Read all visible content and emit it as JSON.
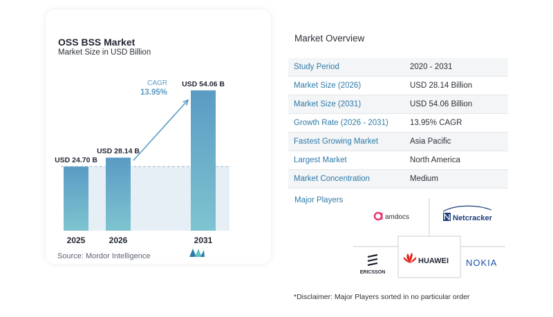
{
  "chart_data": {
    "type": "bar",
    "title": "OSS BSS Market",
    "subtitle": "Market Size in USD Billion",
    "categories": [
      "2025",
      "2026",
      "2031"
    ],
    "values": [
      24.7,
      28.14,
      54.06
    ],
    "value_labels": [
      "USD 24.70 B",
      "USD 28.14 B",
      "USD 54.06 B"
    ],
    "ylim": [
      0,
      58
    ],
    "cagr_label": "CAGR",
    "cagr_value": "13.95%",
    "colors": {
      "bar": "#5a9bc4",
      "bar_bottom": "#7ec4d0",
      "band": "#e6eff6",
      "arrow": "#5a9bc4"
    },
    "grid": false
  },
  "source": "Source:  Mordor Intelligence",
  "overview": {
    "title": "Market Overview",
    "rows": [
      {
        "label": "Study Period",
        "value": "2020 - 2031"
      },
      {
        "label": "Market Size (2026)",
        "value": "USD 28.14 Billion"
      },
      {
        "label": "Market Size (2031)",
        "value": "USD 54.06 Billion"
      },
      {
        "label": "Growth Rate (2026 - 2031)",
        "value": "13.95% CAGR"
      },
      {
        "label": "Fastest Growing Market",
        "value": "Asia Pacific"
      },
      {
        "label": "Largest Market",
        "value": "North America"
      },
      {
        "label": "Market Concentration",
        "value": "Medium"
      }
    ]
  },
  "players": {
    "title": "Major Players",
    "items": [
      "amdocs",
      "Netcracker",
      "ERICSSON",
      "HUAWEI",
      "NOKIA"
    ]
  },
  "disclaimer": "*Disclaimer: Major Players sorted in no particular order"
}
